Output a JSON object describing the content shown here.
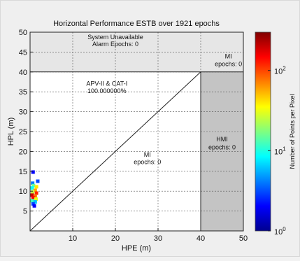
{
  "chart_data": {
    "type": "heatmap",
    "title": "Horizontal Performance ESTB over 1921 epochs",
    "xlabel": "HPE (m)",
    "ylabel": "HPL (m)",
    "xlim": [
      0,
      50
    ],
    "ylim": [
      0,
      50
    ],
    "alert_limit": 40,
    "grid": true,
    "xticks": [
      10,
      20,
      30,
      40,
      50
    ],
    "yticks": [
      5,
      10,
      15,
      20,
      25,
      30,
      35,
      40,
      45,
      50
    ],
    "regions": {
      "unavailable": {
        "label1": "System Unavailable",
        "label2": "Alarm Epochs: 0"
      },
      "mi_upper": {
        "label1": "MI",
        "label2": "epochs: 0"
      },
      "hmi": {
        "label1": "HMI",
        "label2": "epochs: 0"
      },
      "mi_lower": {
        "label1": "MI",
        "label2": "epochs: 0"
      },
      "available": {
        "label1": "APV-II & CAT-I",
        "label2": "100.000000%"
      }
    },
    "points": [
      {
        "x": 0.7,
        "y": 14.8,
        "count": 2
      },
      {
        "x": 1.8,
        "y": 12.5,
        "count": 3
      },
      {
        "x": 0.6,
        "y": 12.0,
        "count": 4
      },
      {
        "x": 0.8,
        "y": 11.4,
        "count": 15
      },
      {
        "x": 1.5,
        "y": 11.1,
        "count": 40
      },
      {
        "x": 0.5,
        "y": 10.8,
        "count": 9
      },
      {
        "x": 1.2,
        "y": 10.2,
        "count": 60
      },
      {
        "x": 0.6,
        "y": 9.8,
        "count": 25
      },
      {
        "x": 1.5,
        "y": 9.5,
        "count": 120
      },
      {
        "x": 0.5,
        "y": 9.0,
        "count": 200
      },
      {
        "x": 1.2,
        "y": 8.8,
        "count": 80
      },
      {
        "x": 0.7,
        "y": 8.3,
        "count": 150
      },
      {
        "x": 1.4,
        "y": 8.0,
        "count": 30
      },
      {
        "x": 0.5,
        "y": 7.6,
        "count": 12
      },
      {
        "x": 1.2,
        "y": 7.3,
        "count": 6
      },
      {
        "x": 0.7,
        "y": 6.8,
        "count": 3
      },
      {
        "x": 1.0,
        "y": 6.3,
        "count": 2
      }
    ],
    "colorbar": {
      "label": "Number of Points per Pixel",
      "scale": "log",
      "range": [
        1,
        300
      ],
      "ticks": [
        {
          "value": 1,
          "base": "10",
          "exp": "0"
        },
        {
          "value": 10,
          "base": "10",
          "exp": "1"
        },
        {
          "value": 100,
          "base": "10",
          "exp": "2"
        }
      ]
    },
    "colors": {
      "background": "#ffffff",
      "unavailable_fill": "#e6e6e6",
      "hmi_fill": "#c4c4c4"
    }
  }
}
